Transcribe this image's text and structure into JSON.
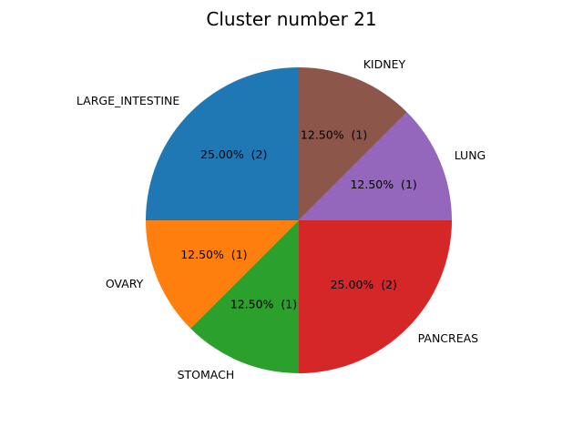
{
  "chart_data": {
    "type": "pie",
    "title": "Cluster number 21",
    "slices": [
      {
        "label": "LARGE_INTESTINE",
        "value": 2,
        "percent_label": "25.00%  (2)",
        "color": "#1f77b4"
      },
      {
        "label": "OVARY",
        "value": 1,
        "percent_label": "12.50%  (1)",
        "color": "#ff7f0e"
      },
      {
        "label": "STOMACH",
        "value": 1,
        "percent_label": "12.50%  (1)",
        "color": "#2ca02c"
      },
      {
        "label": "PANCREAS",
        "value": 2,
        "percent_label": "25.00%  (2)",
        "color": "#d62728"
      },
      {
        "label": "LUNG",
        "value": 1,
        "percent_label": "12.50%  (1)",
        "color": "#9467bd"
      },
      {
        "label": "KIDNEY",
        "value": 1,
        "percent_label": "12.50%  (1)",
        "color": "#8c564b"
      }
    ],
    "start_angle_deg": 90,
    "direction": "counterclockwise",
    "legend": "none"
  }
}
